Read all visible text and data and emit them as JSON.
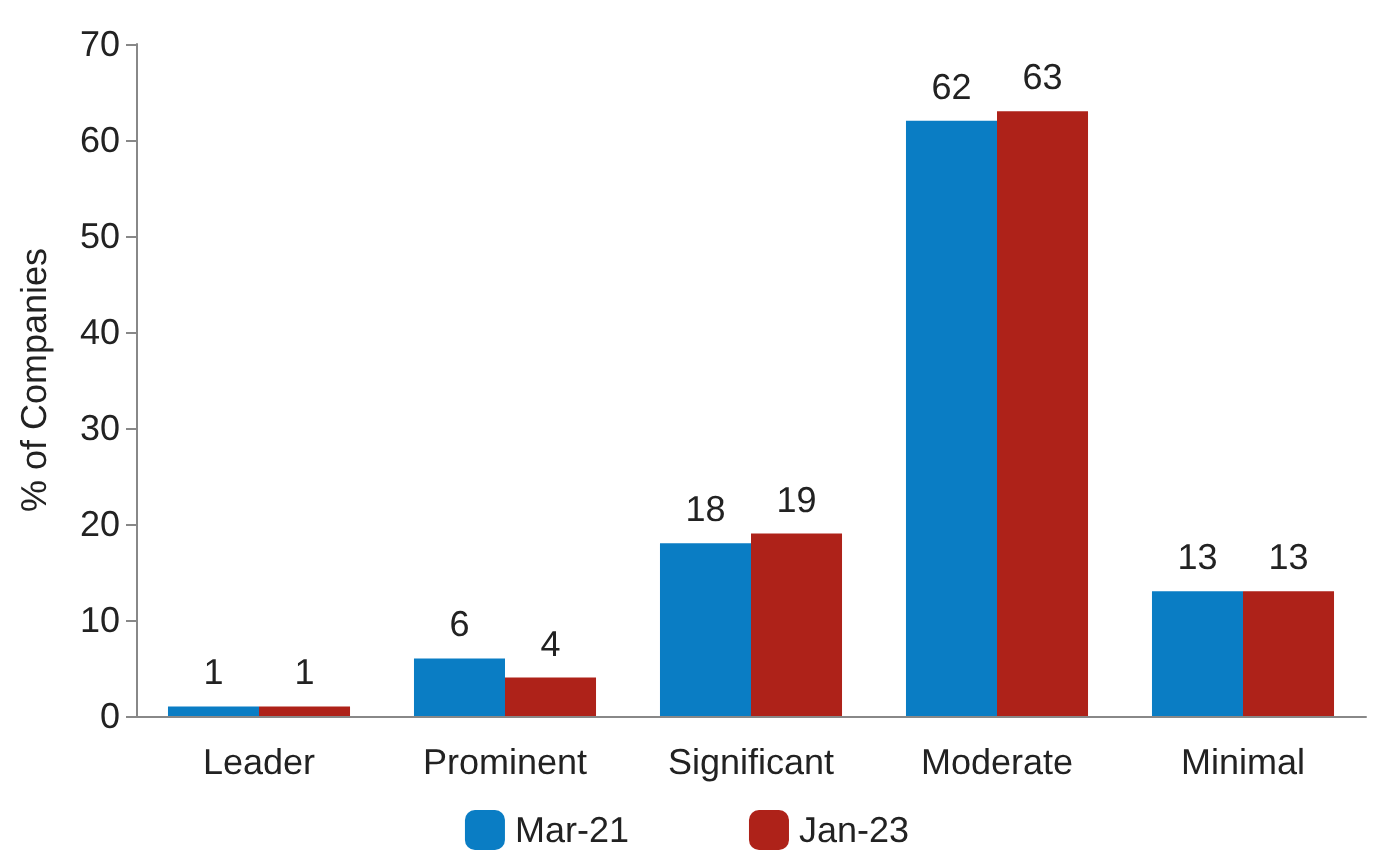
{
  "chart_data": {
    "type": "bar",
    "ylabel": "% of Companies",
    "categories": [
      "Leader",
      "Prominent",
      "Significant",
      "Moderate",
      "Minimal"
    ],
    "series": [
      {
        "name": "Mar-21",
        "color": "#0a7dc4",
        "values": [
          1,
          6,
          18,
          62,
          13
        ]
      },
      {
        "name": "Jan-23",
        "color": "#ae2219",
        "values": [
          1,
          4,
          19,
          63,
          13
        ]
      }
    ],
    "ylim": [
      0,
      70
    ],
    "yticks": [
      0,
      10,
      20,
      30,
      40,
      50,
      60,
      70
    ],
    "grid": false,
    "legend": "bottom",
    "data_labels": true
  }
}
